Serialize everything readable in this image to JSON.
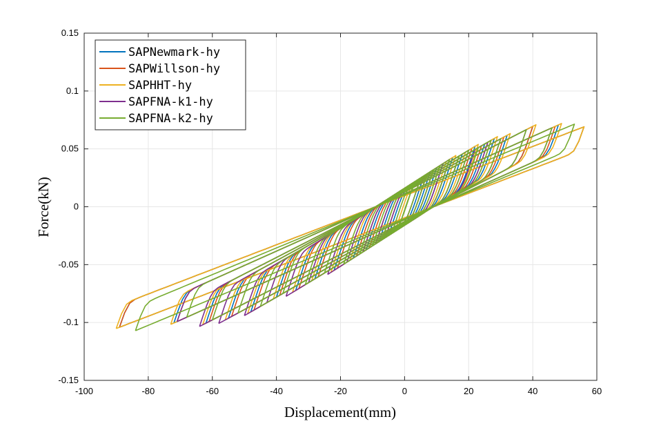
{
  "chart_data": {
    "type": "line",
    "title": "",
    "xlabel": "Displacement(mm)",
    "ylabel": "Force(kN)",
    "xlim": [
      -100,
      60
    ],
    "ylim": [
      -0.15,
      0.15
    ],
    "xticks": [
      -100,
      -80,
      -60,
      -40,
      -20,
      0,
      20,
      40,
      60
    ],
    "xtick_labels": [
      "-100",
      "-80",
      "-60",
      "-40",
      "-20",
      "0",
      "20",
      "40",
      "60"
    ],
    "yticks": [
      -0.15,
      -0.1,
      -0.05,
      0,
      0.05,
      0.1,
      0.15
    ],
    "ytick_labels": [
      "-0.15",
      "-0.1",
      "-0.05",
      "0",
      "0.05",
      "0.1",
      "0.15"
    ],
    "grid": true,
    "legend_position": "top-left",
    "series": [
      {
        "name": "SAPNewmark-hy",
        "color": "#0072BD",
        "cycles": [
          [
            -89,
            56,
            0.6
          ],
          [
            -72,
            48,
            0.7
          ],
          [
            -62,
            40,
            0.8
          ],
          [
            -55,
            32,
            0.85
          ],
          [
            -48,
            28,
            0.9
          ],
          [
            -40,
            25,
            0.9
          ],
          [
            -34,
            22,
            0.95
          ],
          [
            -28,
            18,
            0.95
          ],
          [
            -22,
            15,
            1
          ],
          [
            -16,
            12,
            1
          ],
          [
            -12,
            10,
            1
          ],
          [
            -8,
            8,
            1
          ],
          [
            -5,
            6,
            1
          ]
        ]
      },
      {
        "name": "SAPWillson-hy",
        "color": "#D95319",
        "cycles": [
          [
            -89,
            56,
            0.6
          ],
          [
            -71,
            47,
            0.7
          ],
          [
            -61,
            40,
            0.8
          ],
          [
            -54,
            31,
            0.85
          ],
          [
            -47,
            27,
            0.9
          ],
          [
            -39,
            24,
            0.9
          ],
          [
            -33,
            21,
            0.95
          ],
          [
            -27,
            17,
            0.95
          ],
          [
            -21,
            14,
            1
          ],
          [
            -15,
            11,
            1
          ],
          [
            -11,
            9,
            1
          ],
          [
            -7,
            7,
            1
          ]
        ]
      },
      {
        "name": "SAPHHT-hy",
        "color": "#EDB120",
        "cycles": [
          [
            -90,
            56,
            0.6
          ],
          [
            -73,
            49,
            0.7
          ],
          [
            -63,
            41,
            0.8
          ],
          [
            -56,
            33,
            0.85
          ],
          [
            -49,
            29,
            0.9
          ],
          [
            -41,
            26,
            0.9
          ],
          [
            -35,
            23,
            0.95
          ],
          [
            -29,
            19,
            0.95
          ],
          [
            -23,
            16,
            1
          ],
          [
            -17,
            13,
            1
          ],
          [
            -13,
            11,
            1
          ],
          [
            -9,
            9,
            1
          ],
          [
            -6,
            7,
            1
          ],
          [
            -3,
            5,
            1
          ]
        ]
      },
      {
        "name": "SAPFNA-k1-hy",
        "color": "#7E2F8E",
        "cycles": [
          [
            -71,
            46,
            0.7
          ],
          [
            -64,
            38,
            0.8
          ],
          [
            -58,
            30,
            0.85
          ],
          [
            -50,
            26,
            0.9
          ],
          [
            -43,
            22,
            0.9
          ],
          [
            -37,
            20,
            0.95
          ],
          [
            -30,
            17,
            0.95
          ],
          [
            -24,
            14,
            1
          ],
          [
            -18,
            12,
            1
          ],
          [
            -13,
            9,
            1
          ],
          [
            -9,
            7,
            1
          ],
          [
            -6,
            5,
            1
          ]
        ]
      },
      {
        "name": "SAPFNA-k2-hy",
        "color": "#77AC30",
        "cycles": [
          [
            -84,
            53,
            0.65
          ],
          [
            -68,
            46,
            0.7
          ],
          [
            -60,
            38,
            0.8
          ],
          [
            -52,
            30,
            0.85
          ],
          [
            -45,
            27,
            0.9
          ],
          [
            -38,
            23,
            0.9
          ],
          [
            -31,
            20,
            0.95
          ],
          [
            -25,
            17,
            0.95
          ],
          [
            -19,
            14,
            1
          ],
          [
            -14,
            11,
            1
          ],
          [
            -10,
            9,
            1
          ],
          [
            -7,
            7,
            1
          ],
          [
            -4,
            5,
            1
          ],
          [
            -2,
            3,
            1
          ]
        ]
      }
    ]
  }
}
